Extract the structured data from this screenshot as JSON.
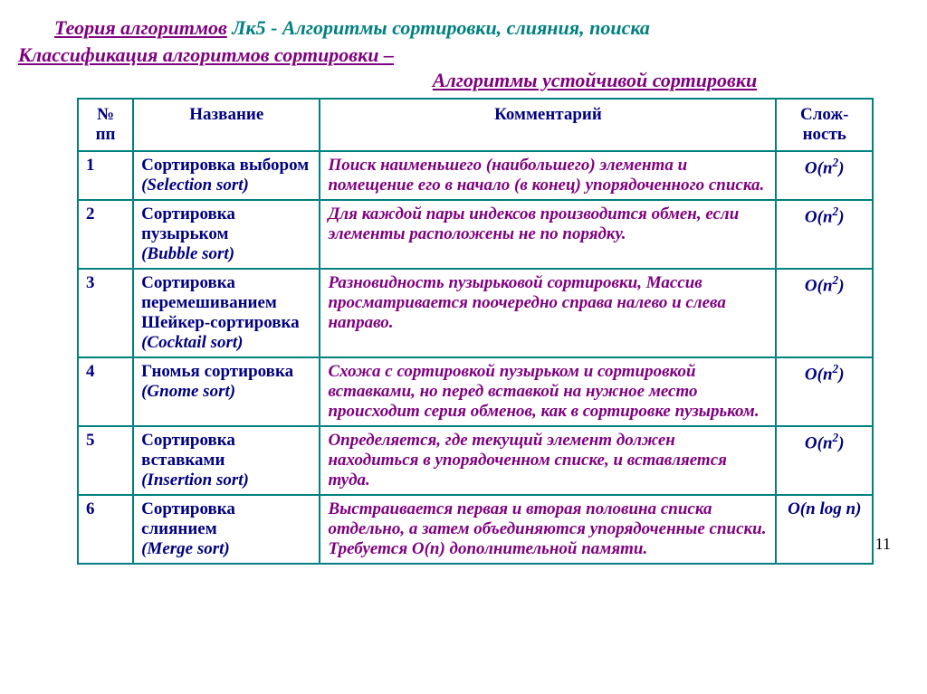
{
  "title": {
    "left": "Теория алгоритмов",
    "right": " Лк5 - Алгоритмы сортировки, слияния, поиска"
  },
  "subtitle1": "Классификация алгоритмов сортировки –",
  "subtitle2": "Алгоритмы устойчивой сортировки",
  "headers": {
    "num": "№ пп",
    "name": "Название",
    "comment": "Комментарий",
    "complex": "Слож-ность"
  },
  "rows": [
    {
      "num": "1",
      "name_ru": "Сортировка выбором",
      "name_en": "(Selection sort)",
      "comment": "Поиск наименьшего (наибольшего) элемента и помещение его в начало (в конец) упорядоченного списка.",
      "complex_html": "<span class='o'>O</span>(<span class='o'>n</span><sup>2</sup>)"
    },
    {
      "num": "2",
      "name_ru": "Сортировка пузырьком",
      "name_en": "(Bubble sort)",
      "comment": "Для каждой пары индексов производится обмен, если элементы расположены не по порядку.",
      "complex_html": "<span class='o'>O</span>(<span class='o'>n</span><sup>2</sup>)"
    },
    {
      "num": "3",
      "name_ru": "Сортировка перемешиванием Шейкер-сортировка",
      "name_en": "(Cocktail sort)",
      "comment": "Разновидность пузырьковой сортировки, Массив просматривается поочередно справа налево и слева направо.",
      "complex_html": "<span class='o'>O</span>(<span class='o'>n</span><sup>2</sup>)"
    },
    {
      "num": "4",
      "name_ru": "Гномья сортировка",
      "name_en": "(Gnome sort)",
      "comment": "Схожа с сортировкой пузырьком и сортировкой вставками, но перед вставкой на нужное место происходит серия обменов, как в сортировке пузырьком.",
      "complex_html": "<span class='o'>O</span>(<span class='o'>n</span><sup>2</sup>)"
    },
    {
      "num": "5",
      "name_ru": "Сортировка вставками",
      "name_en": "(Insertion sort)",
      "comment": "Определяется, где текущий элемент должен находиться в упорядоченном списке, и вставляется туда.",
      "complex_html": "<span class='o'>O</span>(<span class='o'>n</span><sup>2</sup>)"
    },
    {
      "num": "6",
      "name_ru": "Сортировка слиянием",
      "name_en": "(Merge sort)",
      "comment": "Выстраивается первая и вторая половина списка отдельно, а затем объединяются упорядоченные списки. Требуется O(n) дополнительной памяти.",
      "complex_html": "<span class='o'>O</span>(<span class='o'>n</span> log <span class='o'>n</span>)"
    }
  ],
  "page_number": "11",
  "style": {
    "border_color": "#008080",
    "header_text_color": "#000080",
    "name_text_color": "#000080",
    "comment_text_color": "#7f007f",
    "title_purple": "#7f007f",
    "title_teal": "#008080",
    "background": "#ffffff",
    "font_family": "Times New Roman"
  }
}
